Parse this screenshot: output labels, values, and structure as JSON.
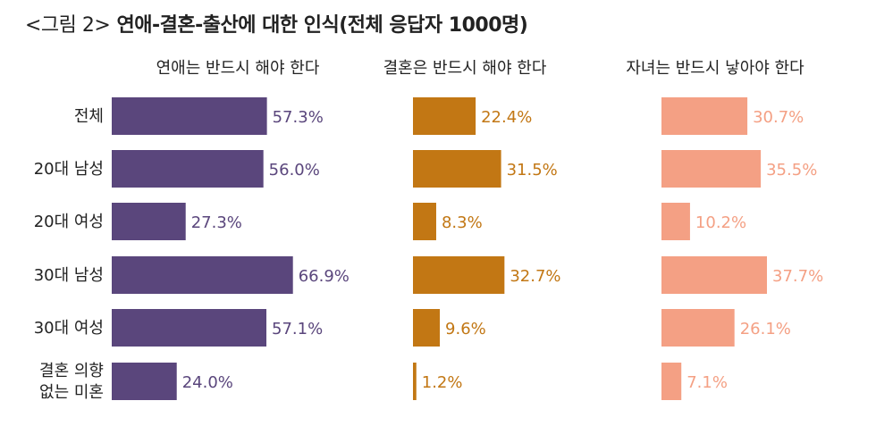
{
  "title_prefix": "<그림 2>",
  "title_main": "연애-결혼-출산에 대한 인식(전체 응답자 1000명)",
  "chart_data": [
    {
      "type": "bar",
      "orientation": "horizontal",
      "title": "연애는 반드시 해야 한다",
      "categories": [
        "전체",
        "20대 남성",
        "20대 여성",
        "30대 남성",
        "30대 여성",
        "결혼 의향|없는 미혼"
      ],
      "values": [
        57.3,
        56.0,
        27.3,
        66.9,
        57.1,
        24.0
      ],
      "labels": [
        "57.3%",
        "56.0%",
        "27.3%",
        "66.9%",
        "57.1%",
        "24.0%"
      ],
      "color": "#5a467c",
      "unit": "%"
    },
    {
      "type": "bar",
      "orientation": "horizontal",
      "title": "결혼은 반드시 해야 한다",
      "categories": [
        "전체",
        "20대 남성",
        "20대 여성",
        "30대 남성",
        "30대 여성",
        "결혼 의향|없는 미혼"
      ],
      "values": [
        22.4,
        31.5,
        8.3,
        32.7,
        9.6,
        1.2
      ],
      "labels": [
        "22.4%",
        "31.5%",
        "8.3%",
        "32.7%",
        "9.6%",
        "1.2%"
      ],
      "color": "#c27714",
      "unit": "%"
    },
    {
      "type": "bar",
      "orientation": "horizontal",
      "title": "자녀는 반드시 낳아야 한다",
      "categories": [
        "전체",
        "20대 남성",
        "20대 여성",
        "30대 남성",
        "30대 여성",
        "결혼 의향|없는 미혼"
      ],
      "values": [
        30.7,
        35.5,
        10.2,
        37.7,
        26.1,
        7.1
      ],
      "labels": [
        "30.7%",
        "35.5%",
        "10.2%",
        "37.7%",
        "26.1%",
        "7.1%"
      ],
      "color": "#f4a084",
      "unit": "%"
    }
  ]
}
